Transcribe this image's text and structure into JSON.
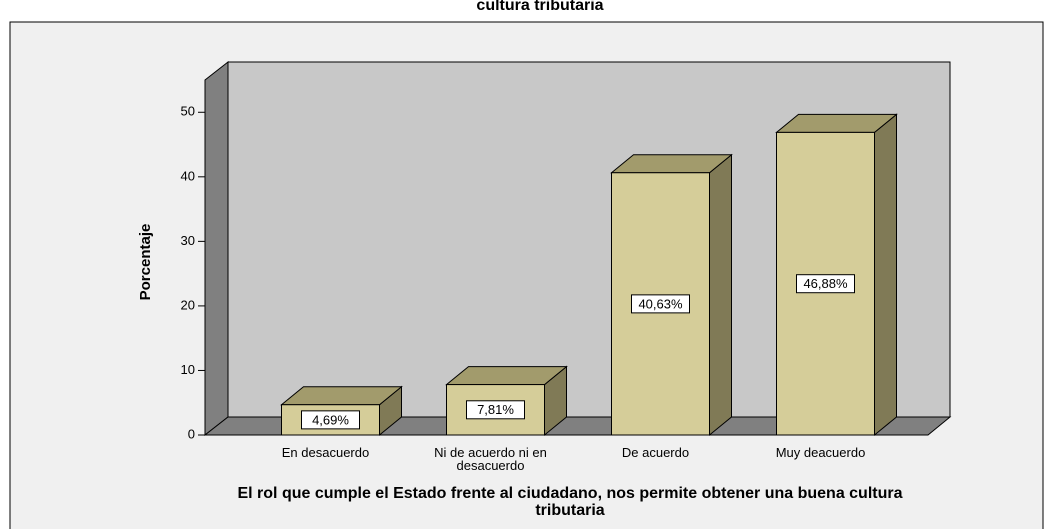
{
  "chart_data": {
    "type": "bar3d",
    "title": "cultura tributaria",
    "categories": [
      "En desacuerdo",
      "Ni de acuerdo ni en desacuerdo",
      "De acuerdo",
      "Muy deacuerdo"
    ],
    "values": [
      4.69,
      7.81,
      40.63,
      46.88
    ],
    "value_labels": [
      "4,69%",
      "7,81%",
      "40,63%",
      "46,88%"
    ],
    "color": "#d5cd99",
    "ylim": [
      0,
      55
    ],
    "yticks": [
      0,
      10,
      20,
      30,
      40,
      50
    ],
    "ylabel": "Porcentaje",
    "xlabel": "El rol que cumple el Estado frente al ciudadano, nos permite obtener una buena cultura tributaria"
  }
}
